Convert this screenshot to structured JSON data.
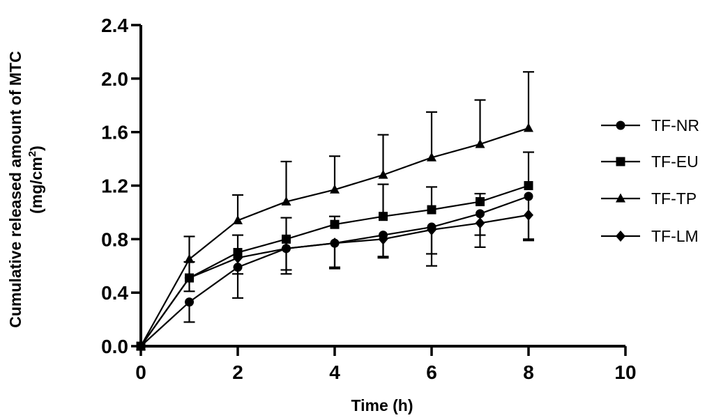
{
  "chart_data": {
    "type": "line",
    "title": "",
    "xlabel": "Time (h)",
    "ylabel_line1": "Cumulative released amount of MTC",
    "ylabel_line2_prefix": "(mg/cm",
    "ylabel_line2_sup": "2",
    "ylabel_line2_suffix": ")",
    "xlim": [
      0,
      10
    ],
    "ylim": [
      0,
      2.4
    ],
    "xticks": [
      0,
      2,
      4,
      6,
      8,
      10
    ],
    "xtick_labels": [
      "0",
      "2",
      "4",
      "6",
      "8",
      "10"
    ],
    "yticks": [
      0,
      0.4,
      0.8,
      1.2,
      1.6,
      2.0,
      2.4
    ],
    "ytick_labels": [
      "0.0",
      "0.4",
      "0.8",
      "1.2",
      "1.6",
      "2.0",
      "2.4"
    ],
    "legend_position": "right",
    "series": [
      {
        "name": "TF-NR",
        "marker": "circle",
        "x": [
          0,
          1,
          2,
          3,
          4,
          5,
          6,
          7,
          8
        ],
        "y": [
          0,
          0.33,
          0.59,
          0.73,
          0.77,
          0.83,
          0.89,
          0.99,
          1.12
        ],
        "err": [
          0,
          0.15,
          0.23,
          0.19,
          0.19,
          0.17,
          0.29,
          0.16,
          0.32
        ],
        "err_dir": "down"
      },
      {
        "name": "TF-EU",
        "marker": "square",
        "x": [
          0,
          1,
          2,
          3,
          4,
          5,
          6,
          7,
          8
        ],
        "y": [
          0,
          0.51,
          0.7,
          0.8,
          0.91,
          0.97,
          1.02,
          1.08,
          1.2
        ],
        "err": [
          0,
          0.12,
          0.13,
          0.16,
          0.06,
          0.24,
          0.17,
          0.06,
          0.25
        ],
        "err_dir": "up"
      },
      {
        "name": "TF-TP",
        "marker": "triangle",
        "x": [
          0,
          1,
          2,
          3,
          4,
          5,
          6,
          7,
          8
        ],
        "y": [
          0,
          0.65,
          0.94,
          1.08,
          1.17,
          1.28,
          1.41,
          1.51,
          1.63
        ],
        "err": [
          0,
          0.17,
          0.19,
          0.3,
          0.25,
          0.3,
          0.34,
          0.33,
          0.42
        ],
        "err_dir": "up"
      },
      {
        "name": "TF-LM",
        "marker": "diamond",
        "x": [
          0,
          1,
          2,
          3,
          4,
          5,
          6,
          7,
          8
        ],
        "y": [
          0,
          0.51,
          0.66,
          0.73,
          0.77,
          0.8,
          0.87,
          0.92,
          0.98
        ],
        "err": [
          0,
          0.1,
          0.12,
          0.16,
          0.18,
          0.13,
          0.18,
          0.18,
          0.19
        ],
        "err_dir": "down"
      }
    ]
  }
}
